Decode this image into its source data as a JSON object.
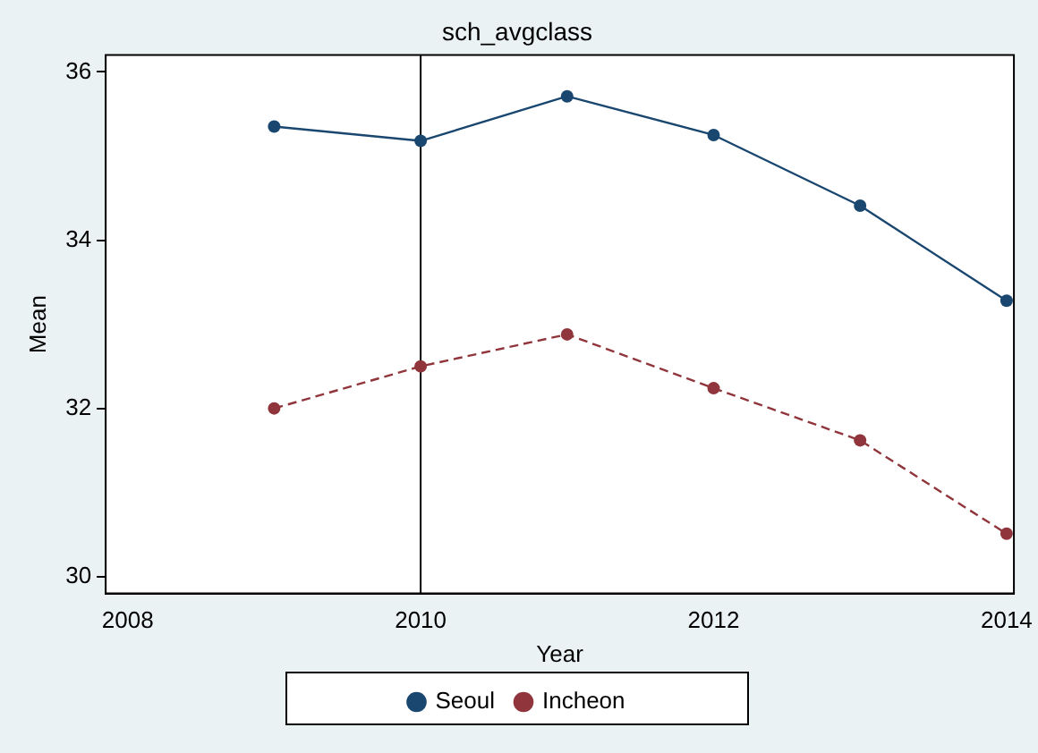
{
  "chart_data": {
    "type": "line",
    "title": "sch_avgclass",
    "xlabel": "Year",
    "ylabel": "Mean",
    "x": [
      2009,
      2010,
      2011,
      2012,
      2013,
      2014
    ],
    "series": [
      {
        "name": "Seoul",
        "color": "#1a476f",
        "values": [
          35.35,
          35.18,
          35.71,
          35.25,
          34.41,
          33.28
        ],
        "line_style": "solid"
      },
      {
        "name": "Incheon",
        "color": "#90353b",
        "values": [
          32.0,
          32.5,
          32.88,
          32.24,
          31.62,
          30.51
        ],
        "line_style": "dashed"
      }
    ],
    "xlim": [
      2007.85,
      2014.05
    ],
    "xticks": [
      2008,
      2010,
      2012,
      2014
    ],
    "ylim": [
      29.8,
      36.2
    ],
    "yticks": [
      30,
      32,
      34,
      36
    ],
    "ref_lines": [
      {
        "axis": "x",
        "value": 2010,
        "color": "#000000"
      }
    ],
    "marker": "circle",
    "legend": "bottom",
    "grid": false
  }
}
